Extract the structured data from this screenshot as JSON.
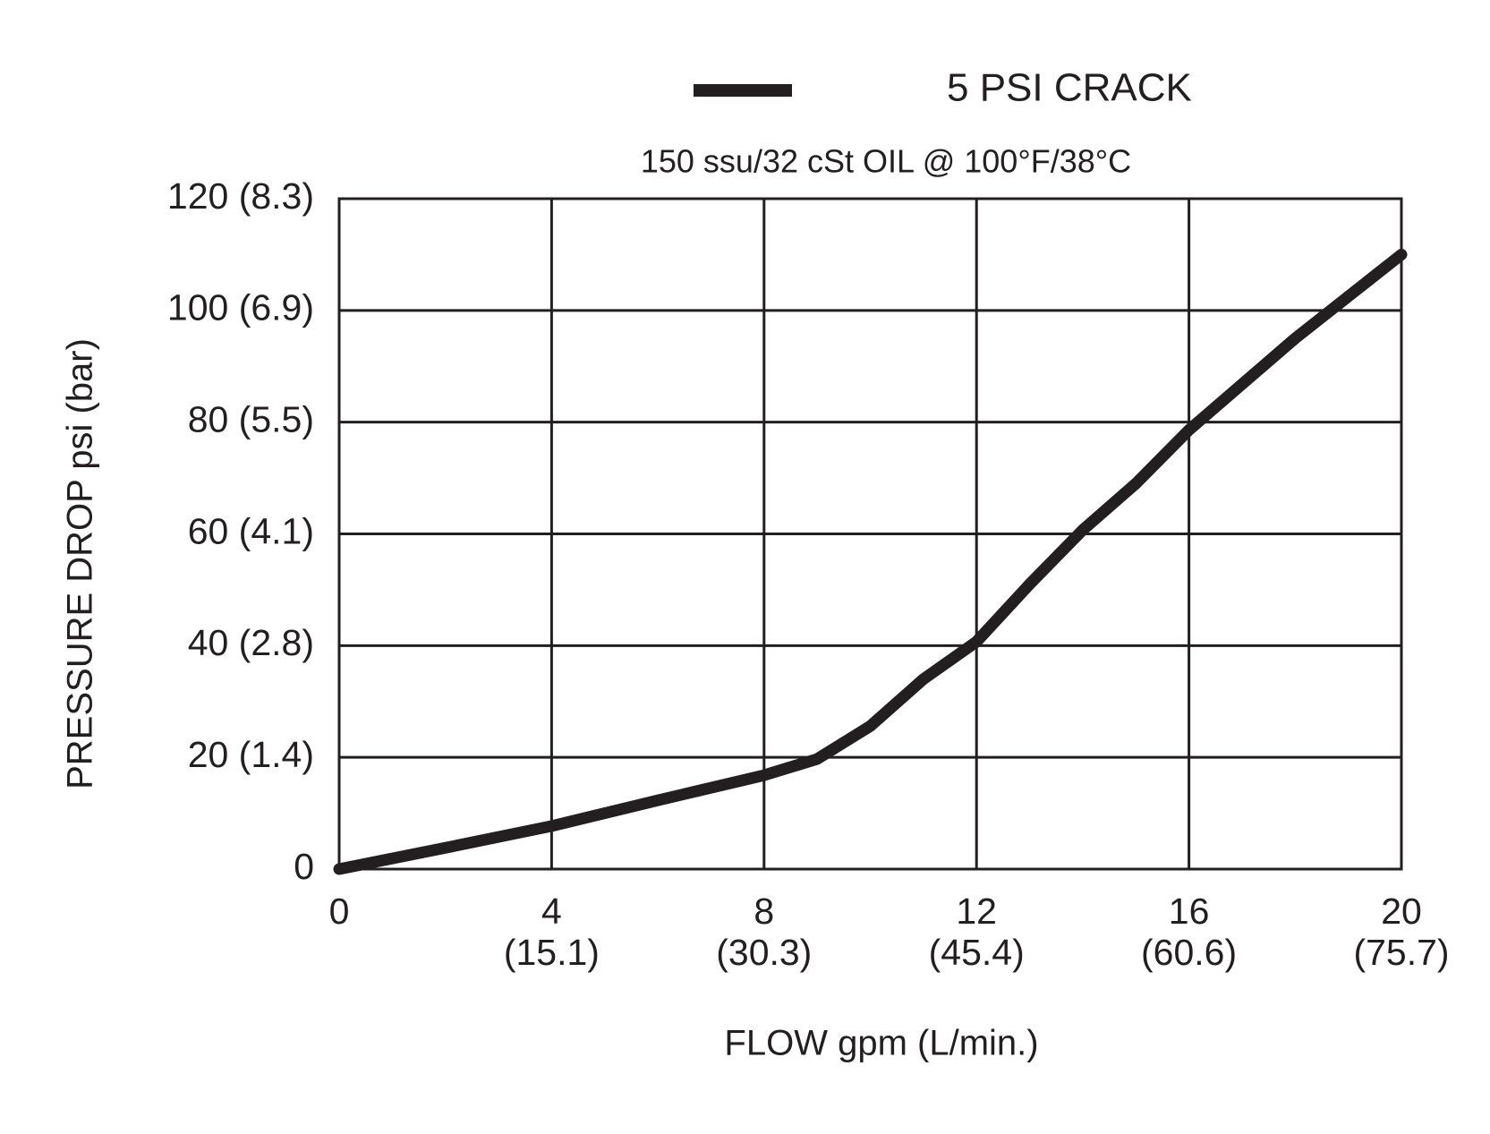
{
  "chart_data": {
    "type": "line",
    "subtitle": "150 ssu/32 cSt OIL @ 100°F/38°C",
    "x_label": "FLOW gpm (L/min.)",
    "y_label": "PRESSURE DROP psi (bar)",
    "x": [
      0,
      2,
      4,
      6,
      8,
      9,
      10,
      11,
      12,
      13,
      14,
      15,
      16,
      18,
      20
    ],
    "series": [
      {
        "name": "5 PSI CRACK",
        "color": "#231f20",
        "values": [
          0,
          3.8,
          7.7,
          12.3,
          16.8,
          19.7,
          25.6,
          34,
          40.7,
          51,
          60.7,
          69,
          78.6,
          95,
          110
        ]
      }
    ],
    "xlim": [
      0,
      20
    ],
    "xticks": [
      0,
      {
        "value": 4,
        "label": "4\n(15.1)"
      },
      {
        "value": 8,
        "label": "8\n(30.3)"
      },
      {
        "value": 12,
        "label": "12\n(45.4)"
      },
      {
        "value": 16,
        "label": "16\n(60.6)"
      },
      {
        "value": 20,
        "label": "20\n(75.7)"
      }
    ],
    "ylim": [
      0,
      120
    ],
    "yticks": [
      0,
      {
        "value": 20,
        "label": "20 (1.4)"
      },
      {
        "value": 40,
        "label": "40 (2.8)"
      },
      {
        "value": 60,
        "label": "60 (4.1)"
      },
      {
        "value": 80,
        "label": "80 (5.5)"
      },
      {
        "value": 100,
        "label": "100 (6.9)"
      },
      {
        "value": 120,
        "label": "120 (8.3)"
      }
    ],
    "grid": true
  }
}
